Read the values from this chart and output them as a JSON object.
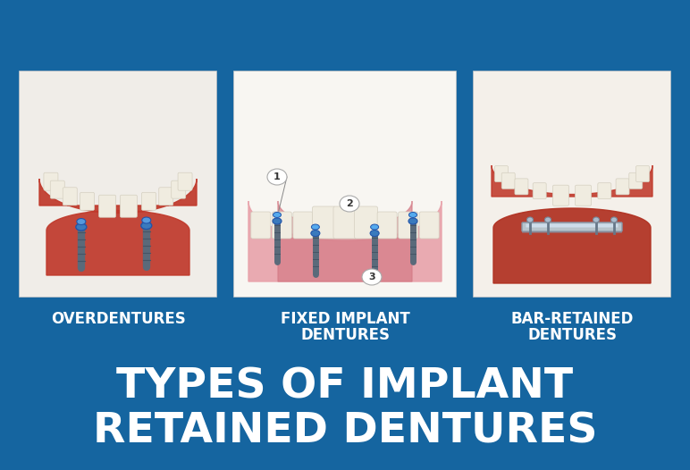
{
  "background_color": "#1565a0",
  "title_line1": "TYPES OF IMPLANT",
  "title_line2": "RETAINED DENTURES",
  "title_color": "#ffffff",
  "title_fontsize": 34,
  "title_fontweight": "bold",
  "labels": [
    "OVERDENTURES",
    "FIXED IMPLANT\nDENTURES",
    "BAR-RETAINED\nDENTURES"
  ],
  "label_color": "#ffffff",
  "label_fontsize": 12,
  "label_fontweight": "bold",
  "panel_edge_color": "#cccccc",
  "panel_bg_color": "#ffffff",
  "gum_color_dark": "#c0392b",
  "gum_color_light": "#e8a0a8",
  "tooth_color": "#f0ece0",
  "tooth_edge": "#d4cfc0",
  "implant_gray": "#5a6a7a",
  "implant_blue": "#3a7abd",
  "bar_color": "#9aabb8",
  "callout_bg": "#ffffff",
  "fig_width": 7.72,
  "fig_height": 5.26,
  "dpi": 100
}
